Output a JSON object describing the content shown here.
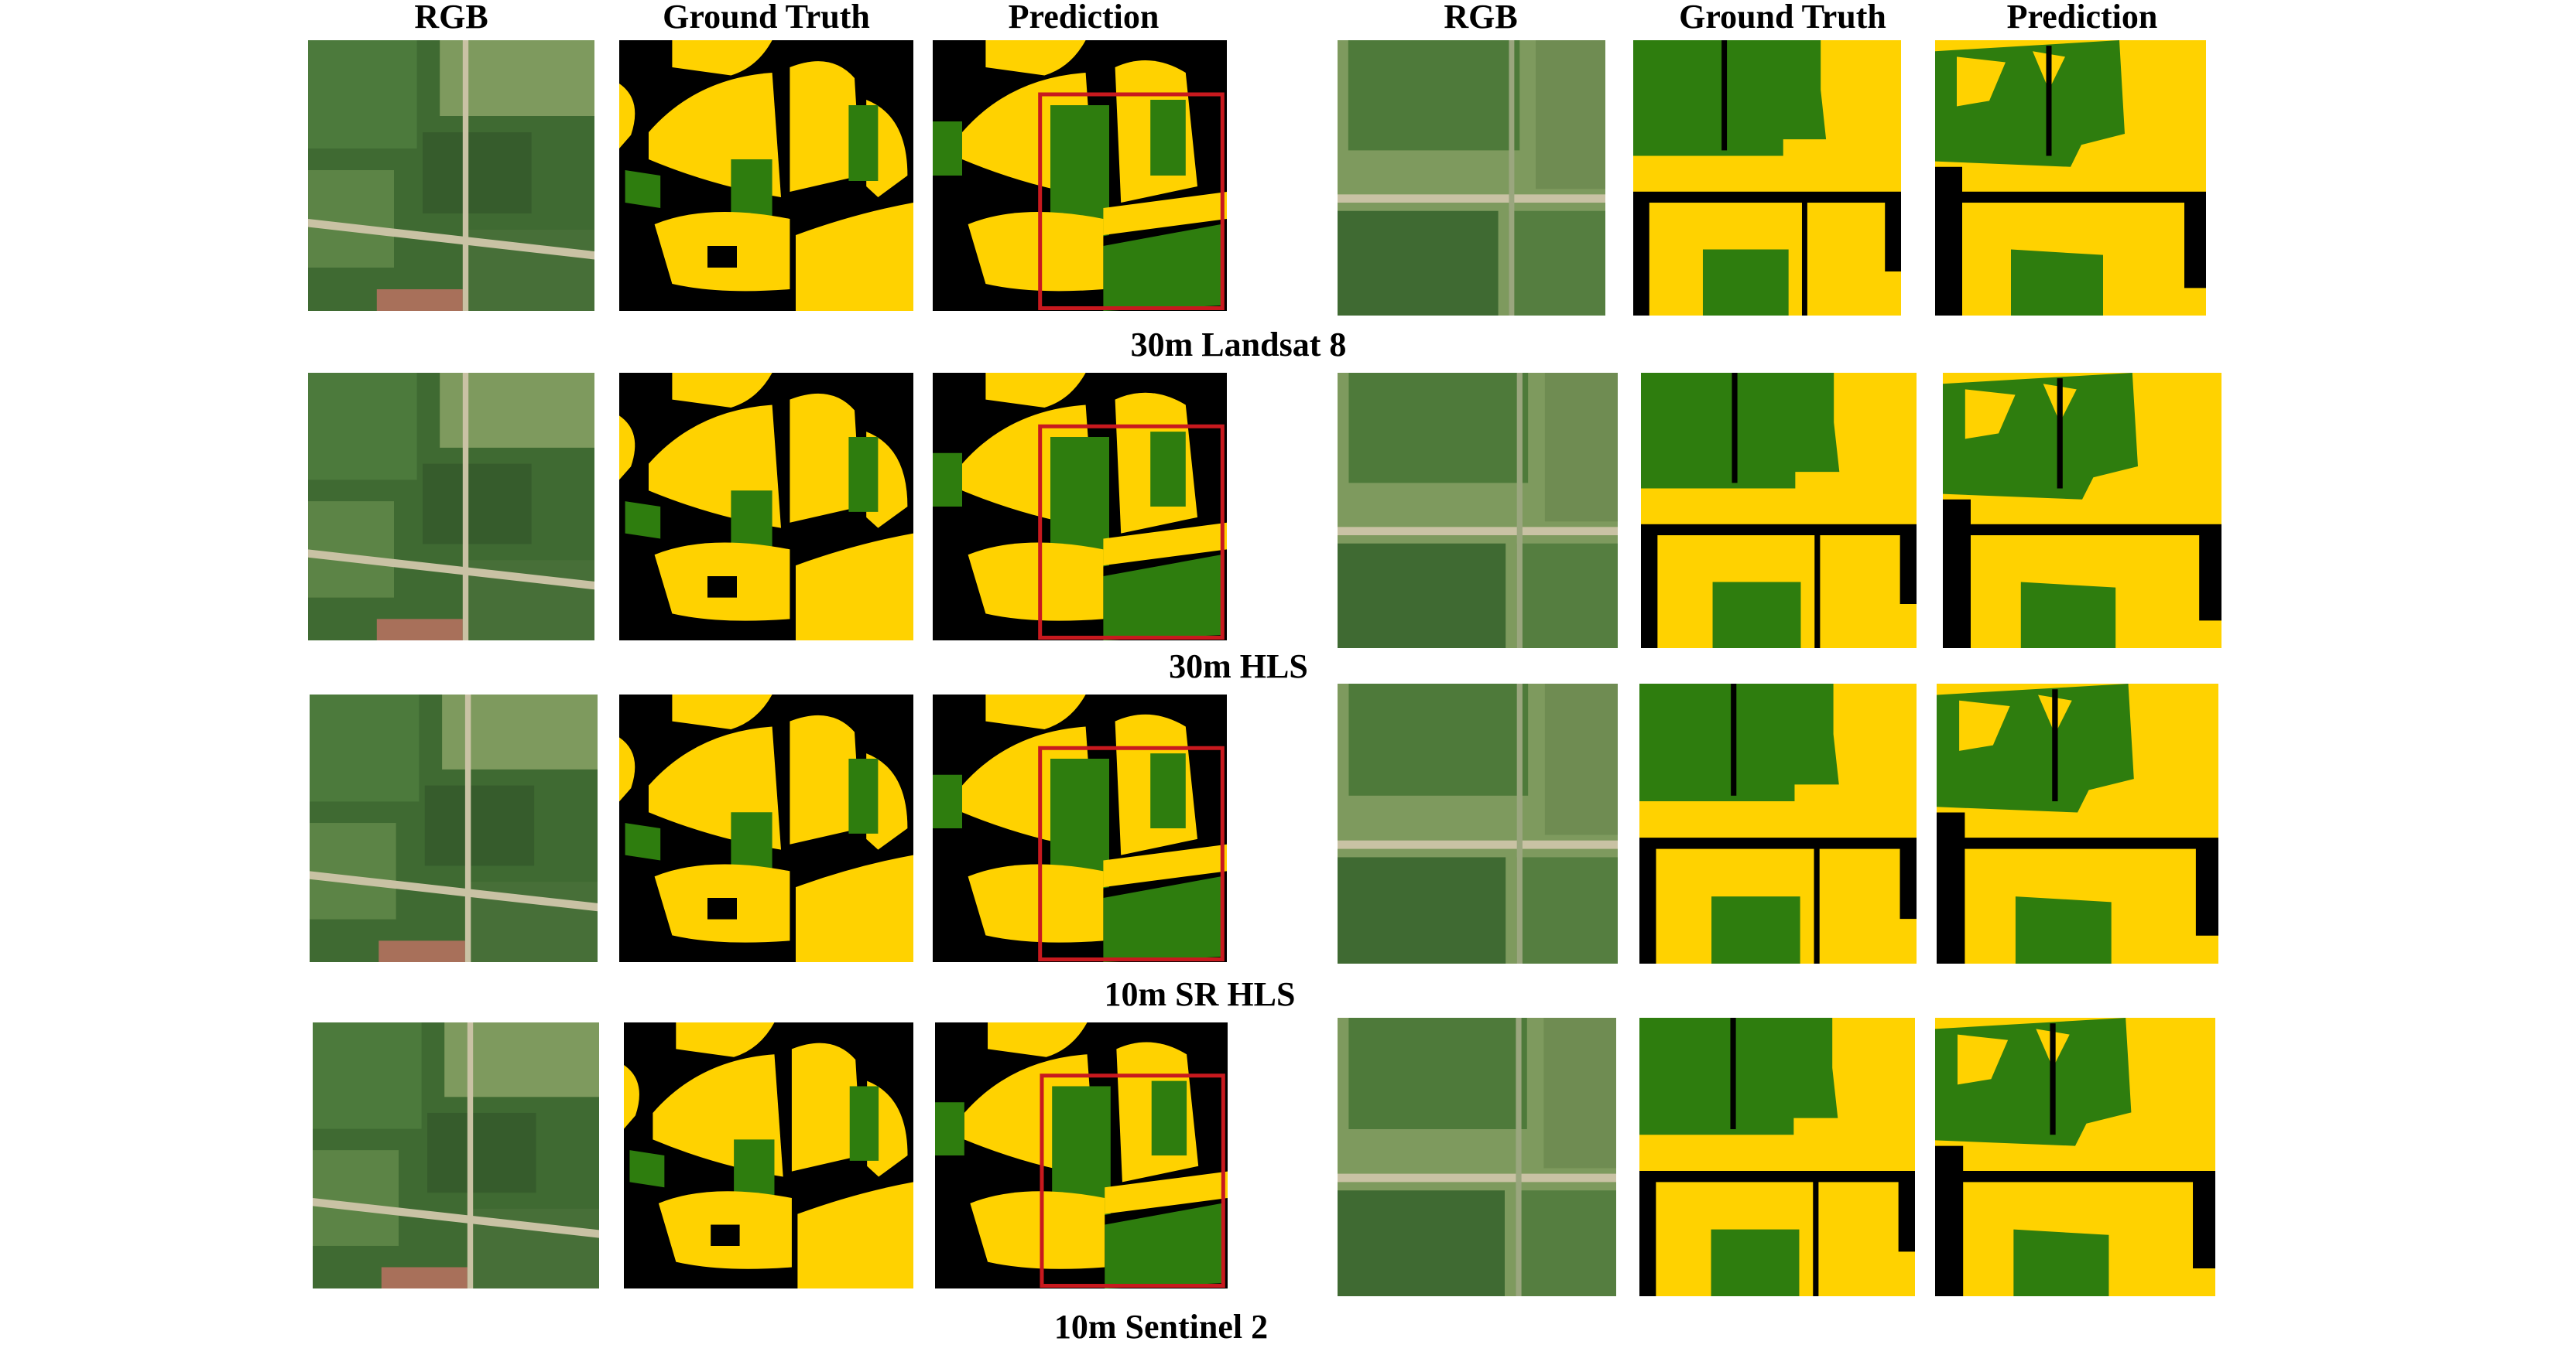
{
  "headers": {
    "left": [
      "RGB",
      "Ground Truth",
      "Prediction"
    ],
    "right": [
      "RGB",
      "Ground Truth",
      "Prediction"
    ]
  },
  "rows": [
    {
      "label": "30m Landsat 8"
    },
    {
      "label": "30m HLS"
    },
    {
      "label": "10m SR HLS"
    },
    {
      "label": "10m Sentinel 2"
    }
  ],
  "colors": {
    "crop_yellow": "#FFD200",
    "crop_green": "#2E7D0E",
    "background": "#000000",
    "highlight_box": "#C8191E",
    "rgb_field_dark": "#3F6A32",
    "rgb_field_light": "#7E9A5E",
    "rgb_road": "#C9C2A4"
  }
}
